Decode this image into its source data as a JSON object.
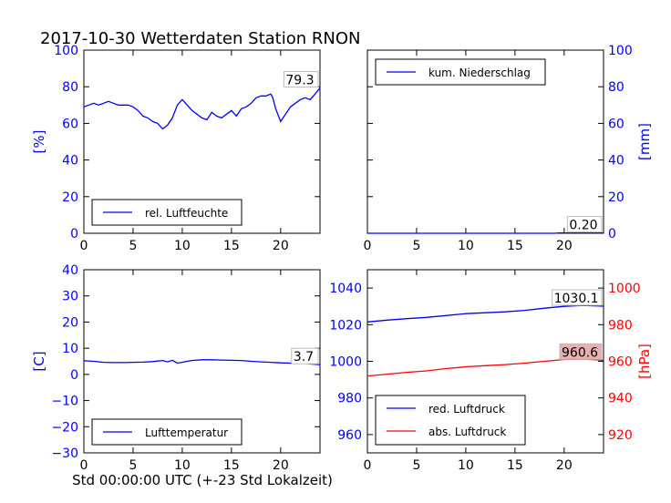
{
  "title": "2017-10-30 Wetterdaten Station RNON",
  "xlabel": "Std 00:00:00 UTC (+-23 Std Lokalzeit)",
  "colors": {
    "blue": "#0000ff",
    "red": "#ff0000",
    "label_box_red": "#e8b0b0"
  },
  "chart_data": [
    {
      "type": "line",
      "panel": "top-left",
      "ylabel": "[%]",
      "ylim": [
        0,
        100
      ],
      "xlim": [
        0,
        24
      ],
      "yticks": [
        "0",
        "20",
        "40",
        "60",
        "80",
        "100"
      ],
      "xticks": [
        "0",
        "5",
        "10",
        "15",
        "20"
      ],
      "legend": "bottom-left",
      "last_value_label": "79.3",
      "series": [
        {
          "name": "rel. Luftfeuchte",
          "color": "#0000ff",
          "x": [
            0,
            0.5,
            1,
            1.5,
            2,
            2.5,
            3,
            3.5,
            4,
            4.5,
            5,
            5.5,
            6,
            6.5,
            7,
            7.5,
            8,
            8.5,
            9,
            9.5,
            10,
            10.5,
            11,
            11.5,
            12,
            12.5,
            13,
            13.5,
            14,
            14.5,
            15,
            15.5,
            16,
            16.5,
            17,
            17.5,
            18,
            18.5,
            19,
            19.2,
            19.5,
            20,
            20.5,
            21,
            21.5,
            22,
            22.5,
            23,
            23.5,
            24
          ],
          "values": [
            69,
            70,
            71,
            70,
            71,
            72,
            71,
            70,
            70,
            70,
            69,
            67,
            64,
            63,
            61,
            60,
            57,
            59,
            63,
            70,
            73,
            70,
            67,
            65,
            63,
            62,
            66,
            64,
            63,
            65,
            67,
            64,
            68,
            69,
            71,
            74,
            75,
            75,
            76,
            74,
            68,
            61,
            65,
            69,
            71,
            73,
            74,
            73,
            76,
            79.3
          ]
        }
      ]
    },
    {
      "type": "line",
      "panel": "top-right",
      "ylabel": "[mm]",
      "ylim": [
        0,
        100
      ],
      "xlim": [
        0,
        24
      ],
      "yticks": [
        "0",
        "20",
        "40",
        "60",
        "80",
        "100"
      ],
      "xticks": [
        "0",
        "5",
        "10",
        "15",
        "20"
      ],
      "legend": "top-left",
      "last_value_label": "0.20",
      "series": [
        {
          "name": "kum. Niederschlag",
          "color": "#0000ff",
          "x": [
            0,
            19,
            19.5,
            24
          ],
          "values": [
            0,
            0,
            0.2,
            0.2
          ]
        }
      ]
    },
    {
      "type": "line",
      "panel": "bottom-left",
      "ylabel": "[C]",
      "ylim": [
        -30,
        40
      ],
      "xlim": [
        0,
        24
      ],
      "yticks": [
        "−30",
        "−20",
        "−10",
        "0",
        "10",
        "20",
        "30",
        "40"
      ],
      "xticks": [
        "0",
        "5",
        "10",
        "15",
        "20"
      ],
      "legend": "bottom-left",
      "last_value_label": "3.7",
      "series": [
        {
          "name": "Lufttemperatur",
          "color": "#0000ff",
          "x": [
            0,
            1,
            2,
            3,
            4,
            5,
            6,
            7,
            8,
            8.5,
            9,
            9.5,
            10,
            10.5,
            11,
            12,
            13,
            14,
            15,
            16,
            17,
            18,
            19,
            20,
            21,
            22,
            23,
            24
          ],
          "values": [
            5.2,
            5.0,
            4.6,
            4.5,
            4.5,
            4.6,
            4.7,
            4.9,
            5.3,
            4.8,
            5.4,
            4.3,
            4.6,
            5.0,
            5.3,
            5.6,
            5.6,
            5.5,
            5.4,
            5.3,
            5.0,
            4.8,
            4.6,
            4.4,
            4.3,
            4.4,
            4.0,
            3.7
          ]
        }
      ]
    },
    {
      "type": "line",
      "panel": "bottom-right",
      "ylabel": "[hPa]",
      "ylim": [
        950,
        1050
      ],
      "y2lim": [
        910,
        1010
      ],
      "xlim": [
        0,
        24
      ],
      "yticks": [
        "960",
        "980",
        "1000",
        "1020",
        "1040"
      ],
      "y2ticks": [
        "920",
        "940",
        "960",
        "980",
        "1000"
      ],
      "xticks": [
        "0",
        "5",
        "10",
        "15",
        "20"
      ],
      "legend": "bottom-left",
      "last_value_label": "1030.1",
      "last_value_label_2": "960.6",
      "series": [
        {
          "name": "red. Luftdruck",
          "color": "#0000ff",
          "axis": "left",
          "x": [
            0,
            2,
            4,
            6,
            8,
            10,
            12,
            14,
            16,
            18,
            20,
            22,
            24
          ],
          "values": [
            1021.5,
            1022.5,
            1023.3,
            1024.0,
            1025.0,
            1026.0,
            1026.5,
            1027.0,
            1027.8,
            1029.0,
            1030.0,
            1030.5,
            1030.1
          ]
        },
        {
          "name": "abs. Luftdruck",
          "color": "#ff0000",
          "axis": "right",
          "x": [
            0,
            2,
            4,
            6,
            8,
            10,
            12,
            14,
            16,
            18,
            20,
            22,
            24
          ],
          "values": [
            952.0,
            953.0,
            954.0,
            954.8,
            956.0,
            957.0,
            957.6,
            958.2,
            959.0,
            960.0,
            961.0,
            961.2,
            960.6
          ]
        }
      ]
    }
  ]
}
